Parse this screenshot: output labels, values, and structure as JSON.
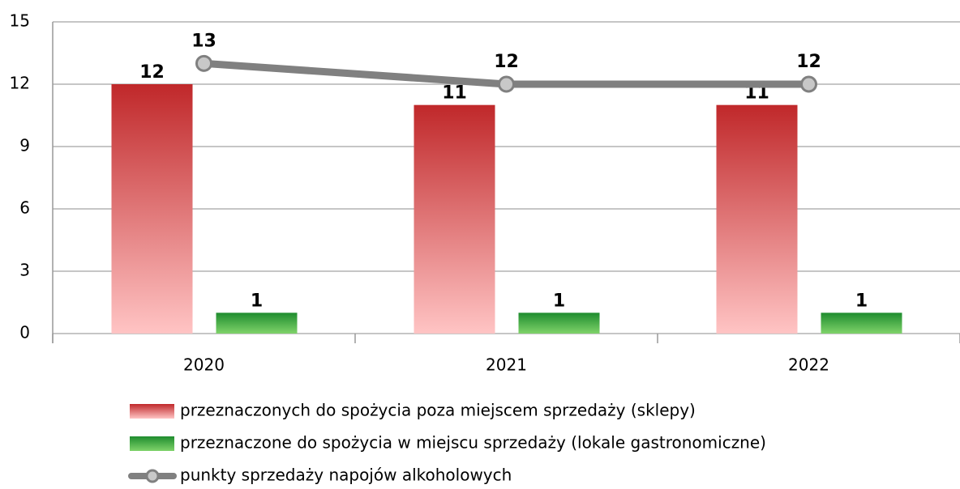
{
  "chart_data": {
    "type": "bar",
    "categories": [
      "2020",
      "2021",
      "2022"
    ],
    "series": [
      {
        "name": "przeznaczonych do spożycia poza miejscem sprzedaży (sklepy)",
        "type": "bar",
        "color": "#c0282a",
        "values": [
          12,
          11,
          11
        ]
      },
      {
        "name": "przeznaczone do spożycia w miejscu sprzedaży (lokale gastronomiczne)",
        "type": "bar",
        "color": "#1e8c2e",
        "values": [
          1,
          1,
          1
        ]
      },
      {
        "name": "punkty sprzedaży napojów alkoholowych",
        "type": "line",
        "color": "#808080",
        "values": [
          13,
          12,
          12
        ]
      }
    ],
    "ylim": [
      0,
      15
    ],
    "yticks": [
      0,
      3,
      6,
      9,
      12,
      15
    ],
    "grid": true,
    "legend": "bottom"
  }
}
